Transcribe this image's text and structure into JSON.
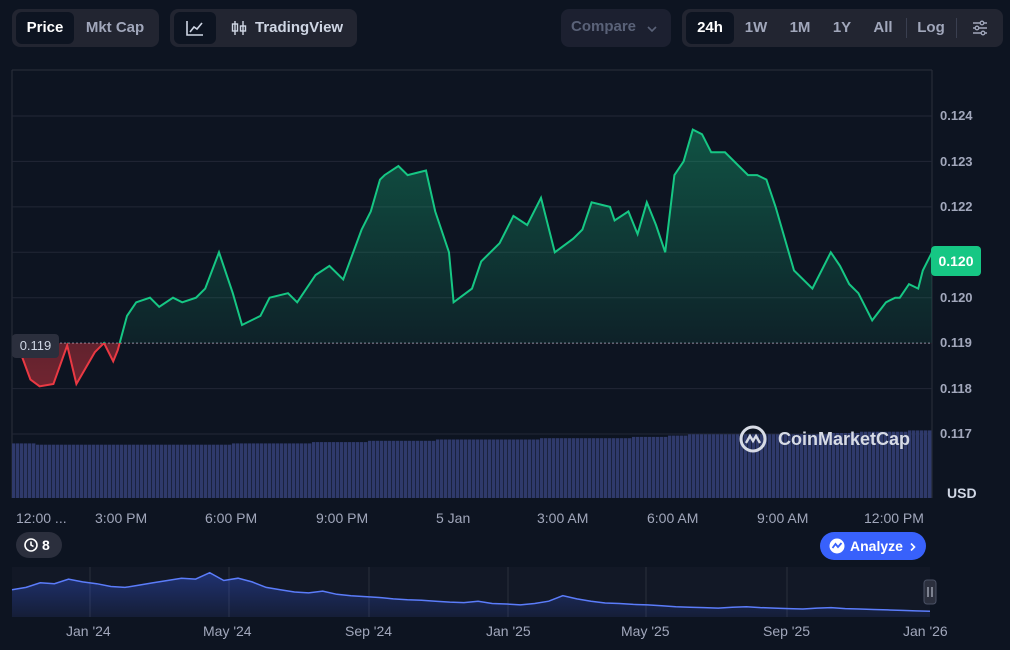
{
  "toolbar": {
    "metric_tabs": [
      "Price",
      "Mkt Cap"
    ],
    "active_metric": "Price",
    "chart_type_tabs": {
      "line_icon": "line-chart-icon",
      "tradingview_icon": "candlestick-icon",
      "tradingview_label": "TradingView"
    },
    "compare_label": "Compare",
    "range_tabs": [
      "24h",
      "1W",
      "1M",
      "1Y",
      "All"
    ],
    "active_range": "24h",
    "log_label": "Log",
    "settings_icon": "sliders-icon"
  },
  "price_badge": "0.120",
  "open_badge": "0.119",
  "currency_label": "USD",
  "watermark": "CoinMarketCap",
  "history_count": "8",
  "analyze_label": "Analyze",
  "colors": {
    "up": "#16c784",
    "down": "#ea3943",
    "volume": "#2f3a6b",
    "accent": "#3861fb",
    "background": "#0d1421"
  },
  "chart_data": {
    "type": "line",
    "ylabel": "USD",
    "yticks": [
      "0.124",
      "0.123",
      "0.122",
      "0.120",
      "0.120",
      "0.119",
      "0.118",
      "0.117"
    ],
    "ylim": [
      0.1168,
      0.1253
    ],
    "baseline": 0.119,
    "xticks": [
      "12:00 ...",
      "3:00 PM",
      "6:00 PM",
      "9:00 PM",
      "5 Jan",
      "3:00 AM",
      "6:00 AM",
      "9:00 AM",
      "12:00 PM"
    ],
    "grid": true,
    "series": [
      {
        "x": [
          0,
          0.01,
          0.02,
          0.03,
          0.045,
          0.06,
          0.07,
          0.09,
          0.1,
          0.11,
          0.115,
          0.125,
          0.135,
          0.15,
          0.16,
          0.175,
          0.185,
          0.2,
          0.21,
          0.225,
          0.24,
          0.25,
          0.27,
          0.28,
          0.3,
          0.31,
          0.33,
          0.345,
          0.36,
          0.38,
          0.39,
          0.4,
          0.405,
          0.42,
          0.43,
          0.45,
          0.46,
          0.475,
          0.48,
          0.5,
          0.51,
          0.53,
          0.545,
          0.56,
          0.575,
          0.59,
          0.61,
          0.62,
          0.63,
          0.65,
          0.655,
          0.67,
          0.68,
          0.69,
          0.7,
          0.71,
          0.72,
          0.73,
          0.74,
          0.75,
          0.76,
          0.775,
          0.79,
          0.8,
          0.81,
          0.82,
          0.83,
          0.85,
          0.87,
          0.89,
          0.9,
          0.91,
          0.92,
          0.935,
          0.95,
          0.96,
          0.965,
          0.975,
          0.985,
          0.99,
          1.0
        ],
        "values": [
          0.119,
          0.11875,
          0.1182,
          0.11805,
          0.1181,
          0.11895,
          0.1181,
          0.1188,
          0.119,
          0.1186,
          0.11885,
          0.1196,
          0.1199,
          0.12,
          0.1198,
          0.12,
          0.1199,
          0.12,
          0.1202,
          0.121,
          0.1201,
          0.1194,
          0.1196,
          0.12,
          0.1201,
          0.1199,
          0.1205,
          0.1207,
          0.1204,
          0.1215,
          0.1219,
          0.1226,
          0.1227,
          0.1229,
          0.1227,
          0.1228,
          0.1219,
          0.121,
          0.1199,
          0.1202,
          0.1208,
          0.1212,
          0.1218,
          0.1216,
          0.1222,
          0.121,
          0.1213,
          0.1215,
          0.1221,
          0.122,
          0.1217,
          0.1219,
          0.1214,
          0.1221,
          0.1216,
          0.121,
          0.1227,
          0.123,
          0.1237,
          0.1236,
          0.1232,
          0.1232,
          0.1229,
          0.1227,
          0.1227,
          0.1226,
          0.122,
          0.1206,
          0.1202,
          0.121,
          0.1207,
          0.1203,
          0.1201,
          0.1195,
          0.1199,
          0.12,
          0.12,
          0.1203,
          0.1202,
          0.1206,
          0.121
        ],
        "volume": [
          0.42,
          0.42,
          0.41,
          0.41,
          0.41,
          0.41,
          0.41,
          0.41,
          0.41,
          0.41,
          0.41,
          0.41,
          0.41,
          0.41,
          0.41,
          0.41,
          0.41,
          0.41,
          0.41,
          0.42,
          0.42,
          0.42,
          0.42,
          0.42,
          0.42,
          0.42,
          0.43,
          0.43,
          0.43,
          0.43,
          0.43,
          0.44,
          0.44,
          0.44,
          0.44,
          0.44,
          0.44,
          0.45,
          0.45,
          0.45,
          0.45,
          0.45,
          0.45,
          0.45,
          0.45,
          0.45,
          0.46,
          0.46,
          0.46,
          0.46,
          0.46,
          0.46,
          0.46,
          0.46,
          0.47,
          0.47,
          0.47,
          0.48,
          0.48,
          0.49,
          0.49,
          0.49,
          0.49,
          0.49,
          0.49,
          0.49,
          0.49,
          0.49,
          0.49,
          0.49,
          0.49,
          0.5,
          0.5,
          0.5,
          0.51,
          0.51,
          0.51,
          0.51,
          0.52,
          0.52,
          0.52
        ]
      }
    ]
  },
  "brush": {
    "xticks": [
      "Jan '24",
      "May '24",
      "Sep '24",
      "Jan '25",
      "May '25",
      "Sep '25",
      "Jan '26"
    ],
    "values": [
      0.55,
      0.6,
      0.7,
      0.68,
      0.78,
      0.72,
      0.68,
      0.62,
      0.6,
      0.65,
      0.7,
      0.75,
      0.8,
      0.78,
      0.92,
      0.75,
      0.8,
      0.72,
      0.6,
      0.55,
      0.5,
      0.48,
      0.52,
      0.45,
      0.42,
      0.4,
      0.38,
      0.35,
      0.33,
      0.32,
      0.3,
      0.28,
      0.27,
      0.3,
      0.25,
      0.24,
      0.22,
      0.25,
      0.3,
      0.42,
      0.35,
      0.3,
      0.26,
      0.25,
      0.23,
      0.22,
      0.2,
      0.18,
      0.17,
      0.16,
      0.15,
      0.17,
      0.18,
      0.16,
      0.15,
      0.14,
      0.13,
      0.15,
      0.16,
      0.14,
      0.13,
      0.12,
      0.11,
      0.1,
      0.09,
      0.08
    ]
  }
}
